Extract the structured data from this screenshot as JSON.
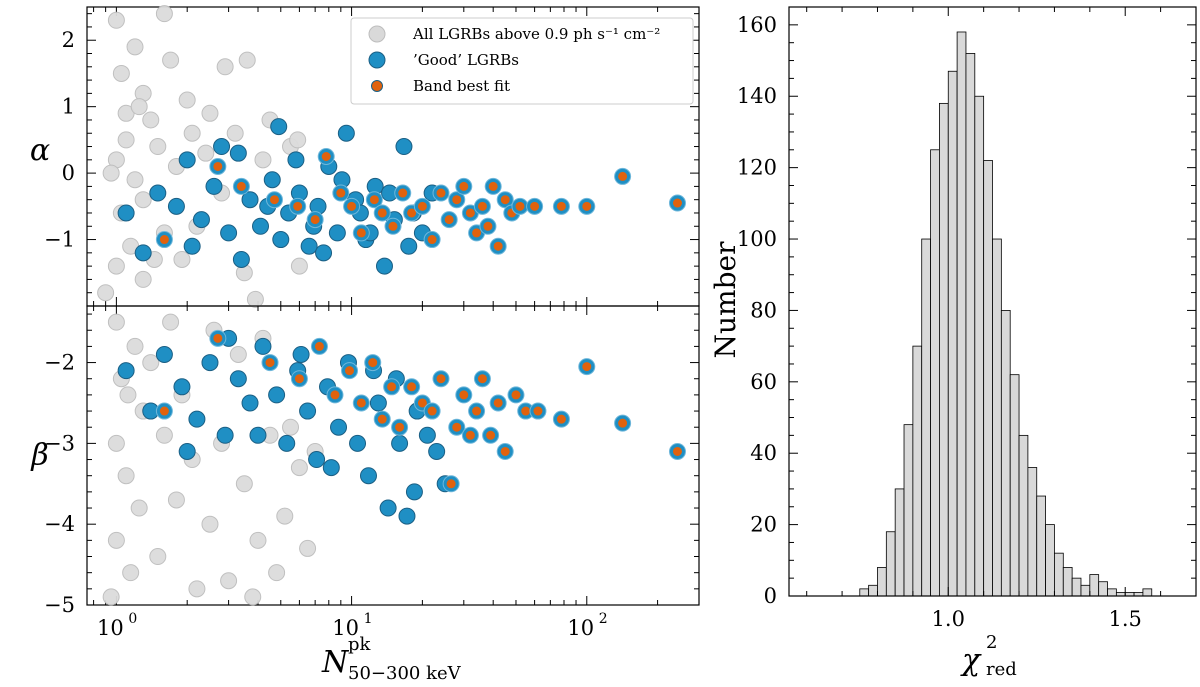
{
  "chart_data": [
    {
      "panel": "top-left",
      "type": "scatter",
      "xscale": "log",
      "xlim": [
        0.75,
        300
      ],
      "ylim": [
        -2,
        2.5
      ],
      "ylabel": "α",
      "yticks": [
        2,
        1,
        0,
        -1
      ],
      "ytick_labels": [
        "2",
        "1",
        "0",
        "−1"
      ],
      "legend": {
        "position": "top-right",
        "entries": [
          {
            "label": "All LGRBs above 0.9 ph s⁻¹ cm⁻²",
            "color": "#d9d9d9"
          },
          {
            "label": "’Good’ LGRBs",
            "color": "#1f8fc4"
          },
          {
            "label": "Band best fit",
            "color": "#e0620d"
          }
        ]
      },
      "series": [
        {
          "name": "All LGRBs above 0.9 ph s⁻¹ cm⁻²",
          "color": "#dcdcdc",
          "edge": "#bdbdbd",
          "points": [
            [
              1.0,
              2.3
            ],
            [
              1.2,
              1.9
            ],
            [
              1.6,
              2.4
            ],
            [
              1.05,
              1.5
            ],
            [
              1.3,
              1.2
            ],
            [
              1.1,
              0.9
            ],
            [
              1.4,
              0.8
            ],
            [
              1.0,
              0.2
            ],
            [
              1.2,
              -0.1
            ],
            [
              1.05,
              -0.6
            ],
            [
              1.15,
              -1.1
            ],
            [
              1.0,
              -1.4
            ],
            [
              1.3,
              -1.6
            ],
            [
              0.9,
              -1.8
            ],
            [
              1.7,
              1.7
            ],
            [
              2.0,
              1.1
            ],
            [
              2.5,
              0.9
            ],
            [
              3.2,
              0.6
            ],
            [
              2.8,
              -0.3
            ],
            [
              2.2,
              -0.8
            ],
            [
              1.9,
              -1.3
            ],
            [
              3.5,
              -1.5
            ],
            [
              1.5,
              0.4
            ],
            [
              1.8,
              0.1
            ],
            [
              2.4,
              0.3
            ],
            [
              1.3,
              -0.4
            ],
            [
              1.6,
              -0.9
            ],
            [
              1.1,
              0.5
            ],
            [
              2.9,
              1.6
            ],
            [
              3.6,
              1.7
            ],
            [
              4.5,
              0.8
            ],
            [
              5.5,
              0.4
            ],
            [
              6.0,
              -1.4
            ],
            [
              2.1,
              0.6
            ],
            [
              1.25,
              1.0
            ],
            [
              0.95,
              0.0
            ],
            [
              1.45,
              -1.3
            ],
            [
              3.9,
              -1.9
            ],
            [
              5.9,
              0.5
            ],
            [
              4.2,
              0.2
            ]
          ]
        },
        {
          "name": "’Good’ LGRBs",
          "color": "#1f8fc4",
          "edge": "#1b5f84",
          "points": [
            [
              1.1,
              -0.6
            ],
            [
              1.5,
              -0.3
            ],
            [
              1.8,
              -0.5
            ],
            [
              2.0,
              0.2
            ],
            [
              2.3,
              -0.7
            ],
            [
              2.6,
              -0.2
            ],
            [
              3.0,
              -0.9
            ],
            [
              3.3,
              0.3
            ],
            [
              3.7,
              -0.4
            ],
            [
              4.1,
              -0.8
            ],
            [
              4.6,
              -0.1
            ],
            [
              4.9,
              0.7
            ],
            [
              5.4,
              -0.6
            ],
            [
              6.0,
              -0.3
            ],
            [
              6.6,
              -1.1
            ],
            [
              7.2,
              -0.5
            ],
            [
              8.0,
              0.1
            ],
            [
              8.7,
              -0.9
            ],
            [
              9.5,
              0.6
            ],
            [
              10.4,
              -0.4
            ],
            [
              11.5,
              -1.0
            ],
            [
              12.6,
              -0.2
            ],
            [
              13.8,
              -1.4
            ],
            [
              15.2,
              -0.7
            ],
            [
              16.7,
              0.4
            ],
            [
              18.3,
              -0.6
            ],
            [
              20.0,
              -0.9
            ],
            [
              22.0,
              -0.3
            ],
            [
              1.3,
              -1.2
            ],
            [
              2.1,
              -1.1
            ],
            [
              2.8,
              0.4
            ],
            [
              3.4,
              -1.3
            ],
            [
              4.4,
              -0.5
            ],
            [
              5.0,
              -1.0
            ],
            [
              5.8,
              0.2
            ],
            [
              6.9,
              -0.8
            ],
            [
              7.6,
              -1.2
            ],
            [
              9.1,
              -0.1
            ],
            [
              10.9,
              -0.6
            ],
            [
              12.0,
              -0.9
            ],
            [
              14.5,
              -0.3
            ],
            [
              17.5,
              -1.1
            ]
          ]
        },
        {
          "name": "Band best fit",
          "color": "#e0620d",
          "edge": "#1f8fc4",
          "points": [
            [
              1.6,
              -1.0
            ],
            [
              2.7,
              0.1
            ],
            [
              3.4,
              -0.2
            ],
            [
              4.7,
              -0.4
            ],
            [
              5.9,
              -0.5
            ],
            [
              7.0,
              -0.7
            ],
            [
              7.8,
              0.25
            ],
            [
              9.0,
              -0.3
            ],
            [
              10.0,
              -0.5
            ],
            [
              11.0,
              -0.9
            ],
            [
              12.5,
              -0.4
            ],
            [
              13.5,
              -0.6
            ],
            [
              15.0,
              -0.8
            ],
            [
              16.5,
              -0.3
            ],
            [
              18.0,
              -0.6
            ],
            [
              20.0,
              -0.5
            ],
            [
              22.0,
              -1.0
            ],
            [
              24.0,
              -0.3
            ],
            [
              26.0,
              -0.7
            ],
            [
              28.0,
              -0.4
            ],
            [
              30.0,
              -0.2
            ],
            [
              32.0,
              -0.6
            ],
            [
              34.0,
              -0.9
            ],
            [
              36.0,
              -0.5
            ],
            [
              38.0,
              -0.8
            ],
            [
              40.0,
              -0.2
            ],
            [
              42.0,
              -1.1
            ],
            [
              45.0,
              -0.4
            ],
            [
              48.0,
              -0.6
            ],
            [
              52.0,
              -0.5
            ],
            [
              60.0,
              -0.5
            ],
            [
              78.0,
              -0.5
            ],
            [
              100.0,
              -0.5
            ],
            [
              142.0,
              -0.05
            ],
            [
              243.0,
              -0.45
            ]
          ]
        }
      ]
    },
    {
      "panel": "bottom-left",
      "type": "scatter",
      "xscale": "log",
      "xlim": [
        0.75,
        300
      ],
      "ylim": [
        -5,
        -1.3
      ],
      "xlabel": "N^pk_50−300 keV",
      "ylabel": "β",
      "xticks": [
        1,
        10,
        100
      ],
      "yticks": [
        -2,
        -3,
        -4,
        -5
      ],
      "ytick_labels": [
        "−2",
        "−3",
        "−4",
        "−5"
      ],
      "series": [
        {
          "name": "All LGRBs above 0.9 ph s⁻¹ cm⁻²",
          "color": "#dcdcdc",
          "edge": "#bdbdbd",
          "points": [
            [
              1.0,
              -1.5
            ],
            [
              1.2,
              -1.8
            ],
            [
              1.05,
              -2.2
            ],
            [
              1.3,
              -2.6
            ],
            [
              1.0,
              -3.0
            ],
            [
              1.1,
              -3.4
            ],
            [
              1.25,
              -3.8
            ],
            [
              1.0,
              -4.2
            ],
            [
              1.15,
              -4.6
            ],
            [
              0.95,
              -4.9
            ],
            [
              1.5,
              -4.4
            ],
            [
              1.8,
              -3.7
            ],
            [
              2.1,
              -3.2
            ],
            [
              2.5,
              -4.0
            ],
            [
              3.0,
              -4.7
            ],
            [
              3.5,
              -3.5
            ],
            [
              4.0,
              -4.2
            ],
            [
              4.5,
              -2.9
            ],
            [
              5.2,
              -3.9
            ],
            [
              6.0,
              -3.3
            ],
            [
              2.2,
              -4.8
            ],
            [
              1.6,
              -2.9
            ],
            [
              1.4,
              -2.0
            ],
            [
              1.9,
              -2.4
            ],
            [
              2.6,
              -1.6
            ],
            [
              3.3,
              -1.9
            ],
            [
              4.2,
              -1.7
            ],
            [
              5.5,
              -2.8
            ],
            [
              7.0,
              -3.1
            ],
            [
              3.8,
              -4.9
            ],
            [
              2.8,
              -3.0
            ],
            [
              1.7,
              -1.5
            ],
            [
              4.8,
              -4.6
            ],
            [
              6.5,
              -4.3
            ],
            [
              1.12,
              -2.4
            ]
          ]
        },
        {
          "name": "’Good’ LGRBs",
          "color": "#1f8fc4",
          "edge": "#1b5f84",
          "points": [
            [
              1.1,
              -2.1
            ],
            [
              1.4,
              -2.6
            ],
            [
              1.6,
              -1.9
            ],
            [
              1.9,
              -2.3
            ],
            [
              2.2,
              -2.7
            ],
            [
              2.5,
              -2.0
            ],
            [
              2.9,
              -2.9
            ],
            [
              3.3,
              -2.2
            ],
            [
              3.7,
              -2.5
            ],
            [
              4.2,
              -1.8
            ],
            [
              4.8,
              -2.4
            ],
            [
              5.3,
              -3.0
            ],
            [
              5.9,
              -2.1
            ],
            [
              6.5,
              -2.6
            ],
            [
              7.1,
              -3.2
            ],
            [
              7.9,
              -2.3
            ],
            [
              8.8,
              -2.8
            ],
            [
              9.7,
              -2.0
            ],
            [
              10.6,
              -3.0
            ],
            [
              11.8,
              -3.4
            ],
            [
              13.0,
              -2.5
            ],
            [
              14.3,
              -3.8
            ],
            [
              15.5,
              -2.2
            ],
            [
              17.2,
              -3.9
            ],
            [
              19.0,
              -2.6
            ],
            [
              21.0,
              -2.9
            ],
            [
              23.0,
              -3.1
            ],
            [
              25.0,
              -3.5
            ],
            [
              2.0,
              -3.1
            ],
            [
              3.0,
              -1.7
            ],
            [
              4.0,
              -2.9
            ],
            [
              6.1,
              -1.9
            ],
            [
              8.2,
              -3.3
            ],
            [
              12.4,
              -2.1
            ],
            [
              16.0,
              -3.0
            ],
            [
              18.5,
              -3.6
            ]
          ]
        },
        {
          "name": "Band best fit",
          "color": "#e0620d",
          "edge": "#1f8fc4",
          "points": [
            [
              1.6,
              -2.6
            ],
            [
              2.7,
              -1.7
            ],
            [
              4.5,
              -2.0
            ],
            [
              6.0,
              -2.2
            ],
            [
              7.3,
              -1.8
            ],
            [
              8.5,
              -2.4
            ],
            [
              9.8,
              -2.1
            ],
            [
              11.0,
              -2.5
            ],
            [
              12.3,
              -2.0
            ],
            [
              13.5,
              -2.7
            ],
            [
              14.8,
              -2.3
            ],
            [
              16.0,
              -2.8
            ],
            [
              18.0,
              -2.3
            ],
            [
              20.0,
              -2.5
            ],
            [
              22.0,
              -2.6
            ],
            [
              24.0,
              -2.2
            ],
            [
              26.5,
              -3.5
            ],
            [
              28.0,
              -2.8
            ],
            [
              30.0,
              -2.4
            ],
            [
              32.0,
              -2.9
            ],
            [
              34.0,
              -2.6
            ],
            [
              36.0,
              -2.2
            ],
            [
              39.0,
              -2.9
            ],
            [
              42.0,
              -2.5
            ],
            [
              45.0,
              -3.1
            ],
            [
              50.0,
              -2.4
            ],
            [
              55.0,
              -2.6
            ],
            [
              62.0,
              -2.6
            ],
            [
              78.0,
              -2.7
            ],
            [
              100.0,
              -2.05
            ],
            [
              142.0,
              -2.75
            ],
            [
              243.0,
              -3.1
            ]
          ]
        }
      ]
    },
    {
      "panel": "right",
      "type": "bar",
      "histogram": true,
      "xlabel": "χ²_red",
      "ylabel": "Number",
      "xlim": [
        0.55,
        1.7
      ],
      "ylim": [
        0,
        165
      ],
      "bin_width": 0.025,
      "bin_start": 0.75,
      "values": [
        2,
        3,
        8,
        18,
        30,
        48,
        70,
        100,
        125,
        138,
        147,
        158,
        152,
        140,
        122,
        100,
        80,
        62,
        45,
        36,
        28,
        20,
        12,
        8,
        5,
        3,
        6,
        4,
        2,
        1,
        1,
        1,
        2
      ],
      "xticks": [
        1.0,
        1.5
      ],
      "xtick_labels": [
        "1.0",
        "1.5"
      ],
      "yticks": [
        0,
        20,
        40,
        60,
        80,
        100,
        120,
        140,
        160
      ],
      "ytick_labels": [
        "0",
        "20",
        "40",
        "60",
        "80",
        "100",
        "120",
        "140",
        "160"
      ],
      "bar_color": "#d9d9d9"
    }
  ],
  "labels": {
    "top_ylabel": "α",
    "bottom_ylabel": "β",
    "bottom_xlabel_main": "N",
    "bottom_xlabel_sup": "pk",
    "bottom_xlabel_sub": "50−300 keV",
    "hist_ylabel": "Number",
    "hist_xlabel_main": "χ",
    "hist_xlabel_sup": "2",
    "hist_xlabel_sub": "red",
    "x_tick_base": "10",
    "x_tick_exp": [
      "0",
      "1",
      "2"
    ]
  }
}
